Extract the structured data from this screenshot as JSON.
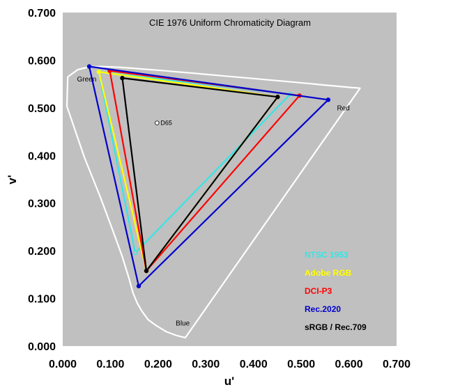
{
  "chart_data": {
    "type": "scatter",
    "title": "CIE 1976 Uniform Chromaticity Diagram",
    "xlabel": "u'",
    "ylabel": "v'",
    "xlim": [
      0.0,
      0.7
    ],
    "ylim": [
      0.0,
      0.7
    ],
    "xticks": [
      "0.000",
      "0.100",
      "0.200",
      "0.300",
      "0.400",
      "0.500",
      "0.600",
      "0.700"
    ],
    "yticks": [
      "0.000",
      "0.100",
      "0.200",
      "0.300",
      "0.400",
      "0.500",
      "0.600",
      "0.700"
    ],
    "grid": false,
    "background": "#c0c0c0",
    "region_labels": [
      {
        "text": "Green",
        "x": 0.03,
        "y": 0.555
      },
      {
        "text": "Red",
        "x": 0.575,
        "y": 0.495
      },
      {
        "text": "Blue",
        "x": 0.237,
        "y": 0.043
      }
    ],
    "white_point": {
      "label": "D65",
      "x": 0.1978,
      "y": 0.4683
    },
    "spectral_locus": {
      "color": "#ffffff",
      "u": [
        0.257,
        0.2374,
        0.2165,
        0.1962,
        0.1791,
        0.1658,
        0.1561,
        0.1474,
        0.1384,
        0.1244,
        0.1033,
        0.0789,
        0.0456,
        0.0087,
        0.0105,
        0.0316,
        0.0566,
        0.0817,
        0.1053,
        0.1266,
        0.1468,
        0.1665,
        0.1877,
        0.2089,
        0.2305,
        0.2525,
        0.275,
        0.3018,
        0.3318,
        0.3644,
        0.3983,
        0.4323,
        0.4662,
        0.4957,
        0.5203,
        0.5404,
        0.5557,
        0.5682,
        0.5782,
        0.5857,
        0.5919,
        0.6001,
        0.6071,
        0.6126,
        0.6174,
        0.6234
      ],
      "v": [
        0.0176,
        0.0225,
        0.0306,
        0.0428,
        0.0552,
        0.0733,
        0.0904,
        0.1113,
        0.144,
        0.1891,
        0.2469,
        0.3126,
        0.3955,
        0.5033,
        0.5648,
        0.5802,
        0.5861,
        0.5864,
        0.5857,
        0.5846,
        0.5831,
        0.5815,
        0.5799,
        0.5782,
        0.5762,
        0.5745,
        0.5725,
        0.5701,
        0.5675,
        0.5645,
        0.5616,
        0.5586,
        0.5556,
        0.5529,
        0.5506,
        0.5486,
        0.5472,
        0.546,
        0.5451,
        0.5443,
        0.5438,
        0.5431,
        0.5425,
        0.5421,
        0.5417,
        0.5412
      ]
    },
    "series": [
      {
        "name": "NTSC 1953",
        "color": "#33e6e6",
        "u": [
          0.4769,
          0.0757,
          0.1522
        ],
        "v": [
          0.5285,
          0.5757,
          0.1957
        ]
      },
      {
        "name": "Adobe RGB",
        "color": "#ffff00",
        "u": [
          0.4507,
          0.0757,
          0.1754
        ],
        "v": [
          0.5229,
          0.5757,
          0.1579
        ]
      },
      {
        "name": "DCI-P3",
        "color": "#ff0000",
        "u": [
          0.4964,
          0.0986,
          0.1754
        ],
        "v": [
          0.5256,
          0.5777,
          0.1579
        ]
      },
      {
        "name": "Rec.2020",
        "color": "#0000cc",
        "u": [
          0.5566,
          0.0556,
          0.1593
        ],
        "v": [
          0.5169,
          0.5868,
          0.1258
        ]
      },
      {
        "name": "sRGB / Rec.709",
        "color": "#000000",
        "u": [
          0.4507,
          0.125,
          0.1754
        ],
        "v": [
          0.5229,
          0.5625,
          0.1579
        ]
      }
    ],
    "legend": {
      "position": "bottom-right"
    }
  }
}
